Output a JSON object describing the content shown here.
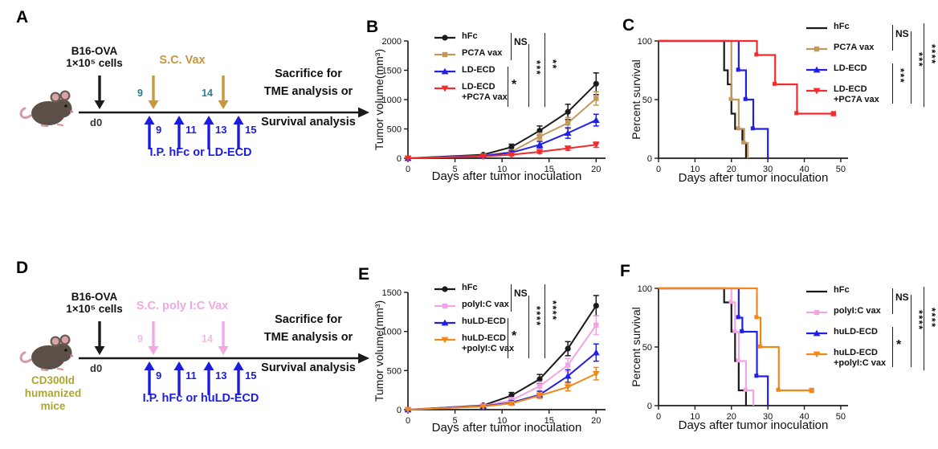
{
  "panels": {
    "A": {
      "label": "A",
      "schematic": {
        "cells_line1": "B16-OVA",
        "cells_line2": "1×10⁵ cells",
        "vax_label": "S.C. Vax",
        "vax_color": "#C8973F",
        "vax_day_color": "#2F7A8E",
        "vax_day1": "9",
        "vax_day2": "14",
        "d0": "d0",
        "ip_day1": "9",
        "ip_day2": "11",
        "ip_day3": "13",
        "ip_day4": "15",
        "ip_label": "I.P. hFc or LD-ECD",
        "ip_color": "#1C1CE0",
        "right_line1": "Sacrifice for",
        "right_line2": "TME analysis or",
        "right_line3": "Survival analysis"
      }
    },
    "B": {
      "label": "B"
    },
    "C": {
      "label": "C"
    },
    "D": {
      "label": "D",
      "schematic": {
        "cells_line1": "B16-OVA",
        "cells_line2": "1×10⁵ cells",
        "vax_label": "S.C. poly I:C Vax",
        "vax_color": "#F2A8E2",
        "vax_day_color": "#F5B9E8",
        "vax_day1": "9",
        "vax_day2": "14",
        "d0": "d0",
        "ip_day1": "9",
        "ip_day2": "11",
        "ip_day3": "13",
        "ip_day4": "15",
        "ip_label": "I.P. hFc or huLD-ECD",
        "ip_color": "#1C1CE0",
        "right_line1": "Sacrifice for",
        "right_line2": "TME analysis or",
        "right_line3": "Survival analysis",
        "caption_line1": "CD300ld",
        "caption_line2": "humanized",
        "caption_line3": "mice",
        "caption_color": "#ADA62B"
      }
    },
    "E": {
      "label": "E"
    },
    "F": {
      "label": "F"
    }
  },
  "chart_data": [
    {
      "panel": "B",
      "type": "line",
      "title": "",
      "xlabel": "Days after tumor inoculation",
      "ylabel": "Tumor volume(mm³)",
      "x": [
        0,
        8,
        11,
        14,
        17,
        20
      ],
      "xticks": [
        0,
        5,
        10,
        15,
        20
      ],
      "xlim": [
        0,
        21
      ],
      "yticks": [
        0,
        500,
        1000,
        1500,
        2000
      ],
      "ylim": [
        0,
        2000
      ],
      "grid": false,
      "legend_position": "top-left-inside",
      "legend_offset_y": 0,
      "series": [
        {
          "name": "hFc",
          "color": "#1A1A1A",
          "marker": "circle",
          "values": [
            0,
            60,
            190,
            470,
            790,
            1270
          ],
          "err": [
            0,
            0,
            50,
            80,
            130,
            185
          ]
        },
        {
          "name": "PC7A vax",
          "color": "#C2995C",
          "marker": "square",
          "values": [
            0,
            45,
            110,
            370,
            600,
            1020
          ],
          "err": [
            0,
            0,
            35,
            60,
            95,
            115
          ]
        },
        {
          "name": "LD-ECD",
          "color": "#2121E6",
          "marker": "triangle-up",
          "values": [
            0,
            40,
            95,
            230,
            430,
            650
          ],
          "err": [
            0,
            0,
            30,
            55,
            90,
            100
          ]
        },
        {
          "name": "LD-ECD\n+PC7A vax",
          "color": "#F32B2B",
          "marker": "triangle-down",
          "values": [
            0,
            30,
            60,
            110,
            170,
            230
          ],
          "err": [
            0,
            0,
            18,
            28,
            35,
            45
          ]
        }
      ],
      "sig": [
        {
          "slot": "top",
          "label": "NS"
        },
        {
          "slot": "bottomLeft",
          "label": "*"
        },
        {
          "slot": "mid",
          "label": "***"
        },
        {
          "slot": "right",
          "label": "**"
        }
      ]
    },
    {
      "panel": "C",
      "type": "step",
      "title": "",
      "xlabel": "Days after tumor inoculation",
      "ylabel": "Percent survival",
      "xticks": [
        0,
        10,
        20,
        30,
        40,
        50
      ],
      "xlim": [
        0,
        52
      ],
      "yticks": [
        0,
        50,
        100
      ],
      "ylim": [
        0,
        100
      ],
      "grid": false,
      "legend_position": "top-right",
      "legend_offset_y": 2,
      "series": [
        {
          "name": "hFc",
          "color": "#1A1A1A",
          "marker": "none",
          "start": 100,
          "steps": [
            [
              18,
              75
            ],
            [
              19,
              63
            ],
            [
              20,
              38
            ],
            [
              21,
              25
            ],
            [
              23,
              13
            ],
            [
              24,
              0
            ]
          ],
          "end": 24
        },
        {
          "name": "PC7A vax",
          "color": "#C2995C",
          "marker": "square",
          "start": 100,
          "steps": [
            [
              20,
              50
            ],
            [
              22,
              25
            ],
            [
              23.5,
              13
            ],
            [
              24.5,
              0
            ]
          ],
          "end": 24.5
        },
        {
          "name": "LD-ECD",
          "color": "#2121E6",
          "marker": "triangle-up",
          "start": 100,
          "steps": [
            [
              22,
              75
            ],
            [
              24,
              50
            ],
            [
              26,
              25
            ],
            [
              30,
              0
            ]
          ],
          "end": 30
        },
        {
          "name": "LD-ECD\n+PC7A vax",
          "color": "#F32B2B",
          "marker": "triangle-down",
          "start": 100,
          "steps": [
            [
              27,
              88
            ],
            [
              32,
              63
            ],
            [
              38,
              38
            ]
          ],
          "end": 48
        }
      ],
      "sig": [
        {
          "slot": "top",
          "label": "NS"
        },
        {
          "slot": "bottomLeft",
          "label": "***"
        },
        {
          "slot": "mid",
          "label": "***"
        },
        {
          "slot": "right",
          "label": "****"
        }
      ]
    },
    {
      "panel": "E",
      "type": "line",
      "title": "",
      "xlabel": "Days after tumor inoculation",
      "ylabel": "Tumor volume(mm³)",
      "x": [
        0,
        8,
        11,
        14,
        17,
        20
      ],
      "xticks": [
        0,
        5,
        10,
        15,
        20
      ],
      "xlim": [
        0,
        21
      ],
      "yticks": [
        0,
        500,
        1000,
        1500
      ],
      "ylim": [
        0,
        1500
      ],
      "grid": false,
      "legend_position": "top-left-inside",
      "legend_offset_y": 0,
      "series": [
        {
          "name": "hFc",
          "color": "#1A1A1A",
          "marker": "circle",
          "values": [
            0,
            55,
            180,
            390,
            780,
            1330
          ],
          "err": [
            0,
            0,
            40,
            60,
            90,
            130
          ]
        },
        {
          "name": "polyI:C vax",
          "color": "#F0A6E4",
          "marker": "square",
          "values": [
            0,
            50,
            120,
            300,
            570,
            1080
          ],
          "err": [
            0,
            0,
            35,
            55,
            85,
            120
          ]
        },
        {
          "name": "huLD-ECD",
          "color": "#2121E6",
          "marker": "triangle-up",
          "values": [
            0,
            45,
            90,
            190,
            430,
            730
          ],
          "err": [
            0,
            0,
            25,
            45,
            80,
            110
          ]
        },
        {
          "name": "huLD-ECD\n+polyI:C vax",
          "color": "#F2881C",
          "marker": "triangle-down",
          "values": [
            0,
            40,
            80,
            180,
            290,
            460
          ],
          "err": [
            0,
            0,
            20,
            35,
            50,
            80
          ]
        }
      ],
      "sig": [
        {
          "slot": "top",
          "label": "NS"
        },
        {
          "slot": "bottomLeft",
          "label": "*"
        },
        {
          "slot": "mid",
          "label": "****"
        },
        {
          "slot": "right",
          "label": "****"
        }
      ]
    },
    {
      "panel": "F",
      "type": "step",
      "title": "",
      "xlabel": "Days after tumor inoculation",
      "ylabel": "Percent survival",
      "xticks": [
        0,
        10,
        20,
        30,
        40,
        50
      ],
      "xlim": [
        0,
        52
      ],
      "yticks": [
        0,
        50,
        100
      ],
      "ylim": [
        0,
        100
      ],
      "grid": false,
      "legend_position": "top-right",
      "legend_offset_y": 22,
      "series": [
        {
          "name": "hFc",
          "color": "#1A1A1A",
          "marker": "none",
          "start": 100,
          "steps": [
            [
              18,
              88
            ],
            [
              20,
              63
            ],
            [
              21,
              38
            ],
            [
              22,
              13
            ],
            [
              24,
              0
            ]
          ],
          "end": 24
        },
        {
          "name": "polyI:C vax",
          "color": "#F0A6E4",
          "marker": "square",
          "start": 100,
          "steps": [
            [
              20,
              88
            ],
            [
              21,
              63
            ],
            [
              22,
              38
            ],
            [
              24,
              13
            ],
            [
              26,
              0
            ]
          ],
          "end": 26
        },
        {
          "name": "huLD-ECD",
          "color": "#2121E6",
          "marker": "triangle-up",
          "start": 100,
          "steps": [
            [
              22,
              75
            ],
            [
              23,
              63
            ],
            [
              27,
              25
            ],
            [
              30,
              0
            ]
          ],
          "end": 30
        },
        {
          "name": "huLD-ECD\n+polyI:C vax",
          "color": "#F2881C",
          "marker": "triangle-down",
          "start": 100,
          "steps": [
            [
              27,
              75
            ],
            [
              28,
              50
            ],
            [
              33,
              13
            ]
          ],
          "end": 42
        }
      ],
      "sig": [
        {
          "slot": "top",
          "label": "NS"
        },
        {
          "slot": "bottomLeft",
          "label": "*"
        },
        {
          "slot": "mid",
          "label": "****"
        },
        {
          "slot": "right",
          "label": "****"
        }
      ]
    }
  ]
}
